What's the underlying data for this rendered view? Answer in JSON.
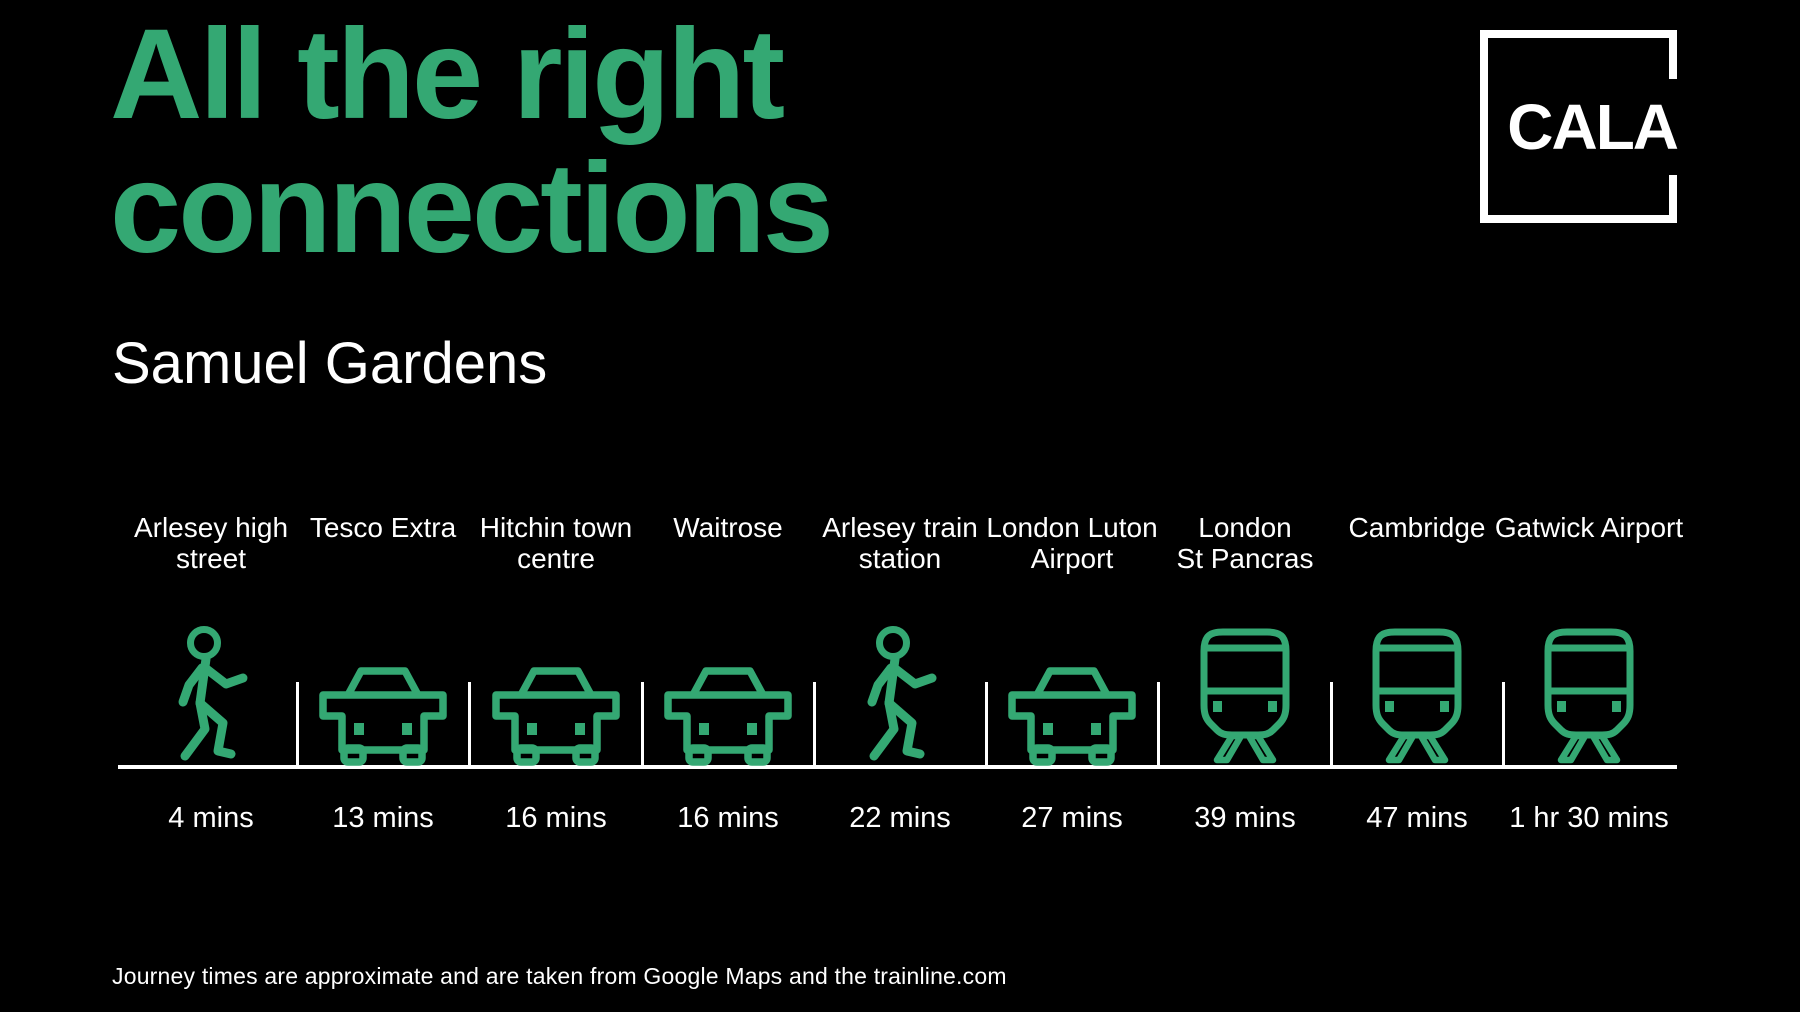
{
  "page": {
    "background_color": "#000000",
    "text_color": "#FFFFFF",
    "accent_color": "#34A873",
    "title_line1": "All the right",
    "title_line2": "connections",
    "subtitle": "Samuel Gardens",
    "logo_text": "CALA",
    "footer": "Journey times are approximate and are taken from Google Maps and the trainline.com"
  },
  "connections": {
    "accent_color": "#34A873",
    "destinations": [
      {
        "label_lines": [
          "Arlesey high",
          "street"
        ],
        "mode": "walking-icon",
        "time": "4 mins"
      },
      {
        "label_lines": [
          "Tesco Extra"
        ],
        "mode": "car-icon",
        "time": "13 mins"
      },
      {
        "label_lines": [
          "Hitchin town",
          "centre"
        ],
        "mode": "car-icon",
        "time": "16 mins"
      },
      {
        "label_lines": [
          "Waitrose"
        ],
        "mode": "car-icon",
        "time": "16 mins"
      },
      {
        "label_lines": [
          "Arlesey train",
          "station"
        ],
        "mode": "walking-icon",
        "time": "22 mins"
      },
      {
        "label_lines": [
          "London Luton",
          "Airport"
        ],
        "mode": "car-icon",
        "time": "27 mins"
      },
      {
        "label_lines": [
          "London",
          "St Pancras"
        ],
        "mode": "train-icon",
        "time": "39 mins"
      },
      {
        "label_lines": [
          "Cambridge"
        ],
        "mode": "train-icon",
        "time": "47 mins"
      },
      {
        "label_lines": [
          "Gatwick Airport"
        ],
        "mode": "train-icon",
        "time": "1 hr 30 mins"
      }
    ]
  }
}
